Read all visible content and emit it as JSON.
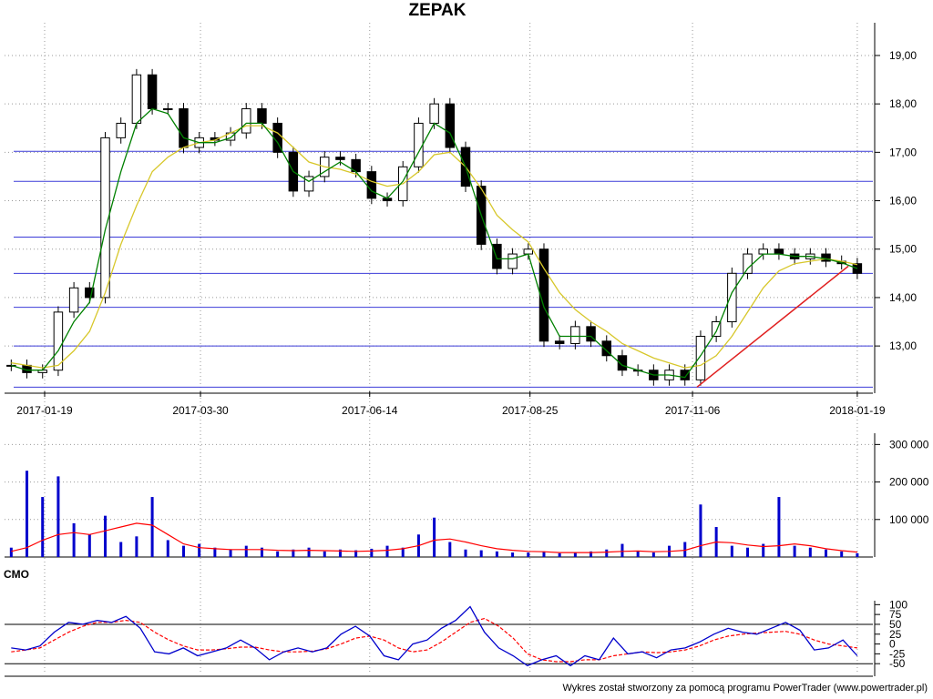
{
  "chart_data": [
    {
      "type": "candlestick",
      "title": "ZEPAK",
      "x_tick_labels": [
        "2017-01-19",
        "2017-03-30",
        "2017-06-14",
        "2017-08-25",
        "2017-11-06",
        "2018-01-19"
      ],
      "y_tick_labels": [
        "13,00",
        "14,00",
        "15,00",
        "16,00",
        "17,00",
        "18,00",
        "19,00"
      ],
      "ylim": [
        12.1,
        19.3
      ],
      "y_ticks": [
        13,
        14,
        15,
        16,
        17,
        18,
        19
      ],
      "grid": true,
      "horizontal_levels": [
        12.15,
        13.0,
        13.8,
        14.5,
        15.25,
        16.4,
        17.02
      ],
      "trendline": {
        "from": {
          "date": "2017-11-08",
          "price": 12.15
        },
        "to": {
          "date": "2018-01-15",
          "price": 14.65
        },
        "color": "#e02020"
      },
      "close_series": {
        "name": "close",
        "dates": [
          "2017-01-04",
          "2017-01-11",
          "2017-01-19",
          "2017-01-26",
          "2017-02-02",
          "2017-02-09",
          "2017-02-16",
          "2017-02-23",
          "2017-03-02",
          "2017-03-09",
          "2017-03-16",
          "2017-03-23",
          "2017-03-30",
          "2017-04-06",
          "2017-04-13",
          "2017-04-20",
          "2017-04-27",
          "2017-05-04",
          "2017-05-11",
          "2017-05-18",
          "2017-05-25",
          "2017-06-01",
          "2017-06-08",
          "2017-06-14",
          "2017-06-22",
          "2017-06-29",
          "2017-07-06",
          "2017-07-13",
          "2017-07-20",
          "2017-07-27",
          "2017-08-03",
          "2017-08-10",
          "2017-08-17",
          "2017-08-25",
          "2017-09-01",
          "2017-09-08",
          "2017-09-15",
          "2017-09-22",
          "2017-09-29",
          "2017-10-06",
          "2017-10-13",
          "2017-10-20",
          "2017-10-27",
          "2017-11-06",
          "2017-11-13",
          "2017-11-20",
          "2017-11-27",
          "2017-12-04",
          "2017-12-11",
          "2017-12-18",
          "2017-12-25",
          "2018-01-01",
          "2018-01-08",
          "2018-01-15",
          "2018-01-19"
        ],
        "values": [
          12.6,
          12.45,
          12.5,
          13.7,
          14.2,
          14.0,
          17.3,
          17.6,
          18.6,
          17.9,
          17.9,
          17.1,
          17.3,
          17.25,
          17.4,
          17.9,
          17.6,
          17.0,
          16.2,
          16.5,
          16.9,
          16.85,
          16.6,
          16.05,
          16.0,
          16.7,
          17.6,
          18.0,
          17.1,
          16.3,
          15.1,
          14.6,
          14.9,
          15.0,
          13.1,
          13.05,
          13.4,
          13.1,
          12.8,
          12.5,
          12.5,
          12.3,
          12.5,
          12.3,
          13.2,
          13.5,
          14.5,
          14.9,
          15.0,
          14.9,
          14.8,
          14.9,
          14.75,
          14.7,
          14.5
        ]
      },
      "sma_fast": {
        "name": "MA fast",
        "color": "#008000",
        "values": [
          12.6,
          12.5,
          12.5,
          12.9,
          13.5,
          13.9,
          15.4,
          16.6,
          17.6,
          17.9,
          17.8,
          17.3,
          17.2,
          17.2,
          17.3,
          17.6,
          17.6,
          17.2,
          16.6,
          16.4,
          16.6,
          16.8,
          16.6,
          16.2,
          16.05,
          16.4,
          17.0,
          17.6,
          17.4,
          16.7,
          15.7,
          14.8,
          14.8,
          14.9,
          13.8,
          13.2,
          13.2,
          13.2,
          12.9,
          12.6,
          12.5,
          12.4,
          12.4,
          12.35,
          12.8,
          13.3,
          14.1,
          14.6,
          14.9,
          14.9,
          14.85,
          14.85,
          14.8,
          14.72,
          14.6
        ]
      },
      "sma_slow": {
        "name": "MA slow",
        "color": "#d7c72a",
        "values": [
          12.65,
          12.6,
          12.55,
          12.6,
          12.9,
          13.3,
          14.1,
          15.1,
          15.9,
          16.6,
          16.9,
          17.1,
          17.2,
          17.25,
          17.4,
          17.55,
          17.55,
          17.4,
          17.1,
          16.8,
          16.7,
          16.65,
          16.55,
          16.4,
          16.3,
          16.35,
          16.6,
          16.95,
          17.0,
          16.7,
          16.25,
          15.7,
          15.4,
          15.15,
          14.6,
          14.1,
          13.75,
          13.5,
          13.3,
          13.05,
          12.9,
          12.75,
          12.65,
          12.55,
          12.6,
          12.8,
          13.2,
          13.7,
          14.2,
          14.55,
          14.7,
          14.75,
          14.8,
          14.75,
          14.68
        ]
      }
    },
    {
      "type": "bar",
      "title": "",
      "y_tick_labels": [
        "100 000",
        "200 000",
        "300 000"
      ],
      "ylim": [
        0,
        330000
      ],
      "y_ticks": [
        100000,
        200000,
        300000
      ],
      "volume": [
        25000,
        230000,
        160000,
        215000,
        90000,
        60000,
        110000,
        40000,
        55000,
        160000,
        45000,
        30000,
        35000,
        25000,
        20000,
        30000,
        25000,
        15000,
        20000,
        25000,
        15000,
        20000,
        18000,
        22000,
        30000,
        25000,
        60000,
        105000,
        40000,
        20000,
        18000,
        15000,
        12000,
        12000,
        15000,
        10000,
        12000,
        15000,
        20000,
        35000,
        15000,
        12000,
        30000,
        40000,
        140000,
        80000,
        30000,
        25000,
        35000,
        160000,
        30000,
        25000,
        20000,
        15000,
        10000
      ],
      "volume_ma": {
        "name": "volume MA",
        "color": "#ff0000",
        "values": [
          15000,
          25000,
          45000,
          60000,
          65000,
          60000,
          70000,
          80000,
          90000,
          85000,
          60000,
          35000,
          25000,
          22000,
          20000,
          20000,
          20000,
          18000,
          17000,
          18000,
          17000,
          16000,
          15000,
          16000,
          18000,
          22000,
          30000,
          45000,
          48000,
          40000,
          30000,
          22000,
          18000,
          15000,
          14000,
          12000,
          12000,
          12000,
          13000,
          15000,
          16000,
          14000,
          15000,
          18000,
          30000,
          40000,
          38000,
          32000,
          28000,
          30000,
          35000,
          30000,
          22000,
          17000,
          13000
        ]
      }
    },
    {
      "type": "line",
      "title": "CMO",
      "y_tick_labels": [
        "-50",
        "-25",
        "0",
        "25",
        "50",
        "75",
        "100"
      ],
      "ylim": [
        -75,
        110
      ],
      "y_ticks": [
        -50,
        -25,
        0,
        25,
        50,
        75,
        100
      ],
      "levels": [
        50,
        -50
      ],
      "series": [
        {
          "name": "CMO",
          "color": "#0000cc",
          "values": [
            -10,
            -15,
            -5,
            30,
            55,
            50,
            60,
            55,
            70,
            40,
            -20,
            -25,
            -10,
            -30,
            -20,
            -10,
            10,
            -10,
            -40,
            -20,
            -10,
            -20,
            -10,
            25,
            45,
            20,
            -30,
            -40,
            0,
            10,
            40,
            60,
            95,
            30,
            -10,
            -30,
            -55,
            -40,
            -30,
            -55,
            -30,
            -40,
            15,
            -25,
            -20,
            -35,
            -15,
            -10,
            5,
            25,
            40,
            30,
            25,
            40,
            55,
            35,
            -15,
            -10,
            10,
            -30
          ]
        },
        {
          "name": "CMO MA",
          "color": "#ff0000",
          "values": [
            -20,
            -15,
            -10,
            10,
            30,
            45,
            55,
            55,
            60,
            55,
            30,
            10,
            -5,
            -15,
            -15,
            -12,
            -8,
            -8,
            -15,
            -20,
            -20,
            -18,
            -12,
            0,
            15,
            20,
            10,
            -10,
            -20,
            -15,
            5,
            30,
            55,
            65,
            45,
            15,
            -25,
            -40,
            -45,
            -45,
            -40,
            -40,
            -30,
            -25,
            -20,
            -22,
            -20,
            -15,
            -5,
            10,
            20,
            25,
            28,
            30,
            32,
            25,
            10,
            0,
            -5,
            -10
          ]
        }
      ]
    }
  ],
  "footer": "Wykres został stworzony za pomocą programu PowerTrader (www.powertrader.pl)"
}
